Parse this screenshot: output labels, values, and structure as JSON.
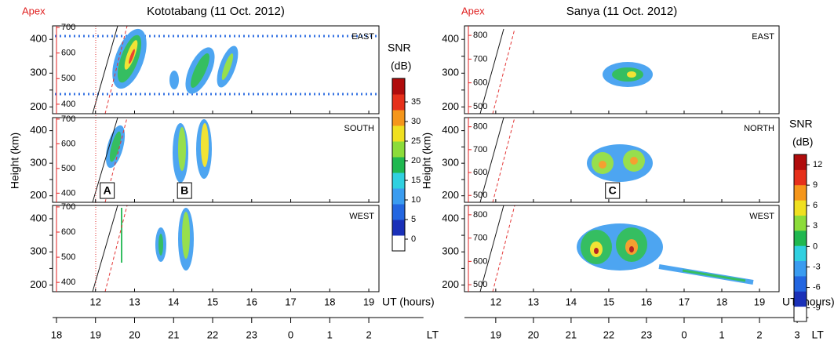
{
  "chart_data": [
    {
      "type": "heatmap",
      "title": "Kototabang (11 Oct. 2012)",
      "apex_label": "Apex",
      "ylabel": "Height (km)",
      "xlabel": "UT (hours)",
      "x2label": "LT",
      "xlim": [
        10.9,
        19.26
      ],
      "xticks": [
        12,
        13,
        14,
        15,
        16,
        17,
        18,
        19
      ],
      "x2lim": [
        10.9,
        20.4
      ],
      "x2ticks": [
        {
          "value": 11,
          "label": "18"
        },
        {
          "value": 12,
          "label": "19"
        },
        {
          "value": 13,
          "label": "20"
        },
        {
          "value": 14,
          "label": "21"
        },
        {
          "value": 15,
          "label": "22"
        },
        {
          "value": 16,
          "label": "23"
        },
        {
          "value": 17,
          "label": "0"
        },
        {
          "value": 18,
          "label": "1"
        },
        {
          "value": 19,
          "label": "2"
        }
      ],
      "ylim": [
        180,
        440
      ],
      "yticks": [
        200,
        250,
        300,
        350,
        400
      ],
      "y2lim": [
        363,
        706
      ],
      "y2ticks": [
        400,
        500,
        600,
        700
      ],
      "panels": [
        {
          "label": "EAST",
          "annotations": []
        },
        {
          "label": "SOUTH",
          "annotations": [
            {
              "text": "A",
              "x": 12.3,
              "y": 216
            },
            {
              "text": "B",
              "x": 14.28,
              "y": 216
            }
          ]
        },
        {
          "label": "WEST",
          "annotations": []
        }
      ],
      "colorbar": {
        "title": "SNR",
        "unit": "(dB)",
        "lim": [
          -3,
          41
        ],
        "ticks": [
          0,
          5,
          10,
          15,
          20,
          25,
          30,
          35
        ],
        "colors": [
          "#ffffff",
          "#1a30b8",
          "#2366e0",
          "#3a9cf0",
          "#30d0e0",
          "#20b850",
          "#8cdc3a",
          "#f0e020",
          "#f5961a",
          "#e6301a",
          "#b00c0c"
        ]
      }
    },
    {
      "type": "heatmap",
      "title": "Sanya (11 Oct. 2012)",
      "apex_label": "Apex",
      "ylabel": "Height (km)",
      "xlabel": "UT (hours)",
      "x2label": "LT",
      "xlim": [
        11.17,
        19.52
      ],
      "xticks": [
        12,
        13,
        14,
        15,
        16,
        17,
        18,
        19
      ],
      "x2lim": [
        11.17,
        20.3
      ],
      "x2ticks": [
        {
          "value": 12,
          "label": "19"
        },
        {
          "value": 13,
          "label": "20"
        },
        {
          "value": 14,
          "label": "21"
        },
        {
          "value": 15,
          "label": "22"
        },
        {
          "value": 16,
          "label": "23"
        },
        {
          "value": 17,
          "label": "0"
        },
        {
          "value": 18,
          "label": "1"
        },
        {
          "value": 19,
          "label": "2"
        },
        {
          "value": 20,
          "label": "3"
        }
      ],
      "ylim": [
        180,
        440
      ],
      "yticks": [
        200,
        250,
        300,
        350,
        400
      ],
      "y2lim": [
        470,
        840
      ],
      "y2ticks": [
        500,
        600,
        700,
        800
      ],
      "panels": [
        {
          "label": "EAST",
          "annotations": []
        },
        {
          "label": "NORTH",
          "annotations": [
            {
              "text": "C",
              "x": 15.1,
              "y": 216
            }
          ]
        },
        {
          "label": "WEST",
          "annotations": []
        }
      ],
      "colorbar": {
        "title": "SNR",
        "unit": "(dB)",
        "lim": [
          -11,
          13.5
        ],
        "ticks": [
          -9,
          -6,
          -3,
          0,
          3,
          6,
          9,
          12
        ],
        "colors": [
          "#ffffff",
          "#1a30b8",
          "#2366e0",
          "#3a9cf0",
          "#30d0e0",
          "#20b850",
          "#8cdc3a",
          "#f0e020",
          "#f5961a",
          "#e6301a",
          "#b00c0c"
        ]
      }
    }
  ]
}
